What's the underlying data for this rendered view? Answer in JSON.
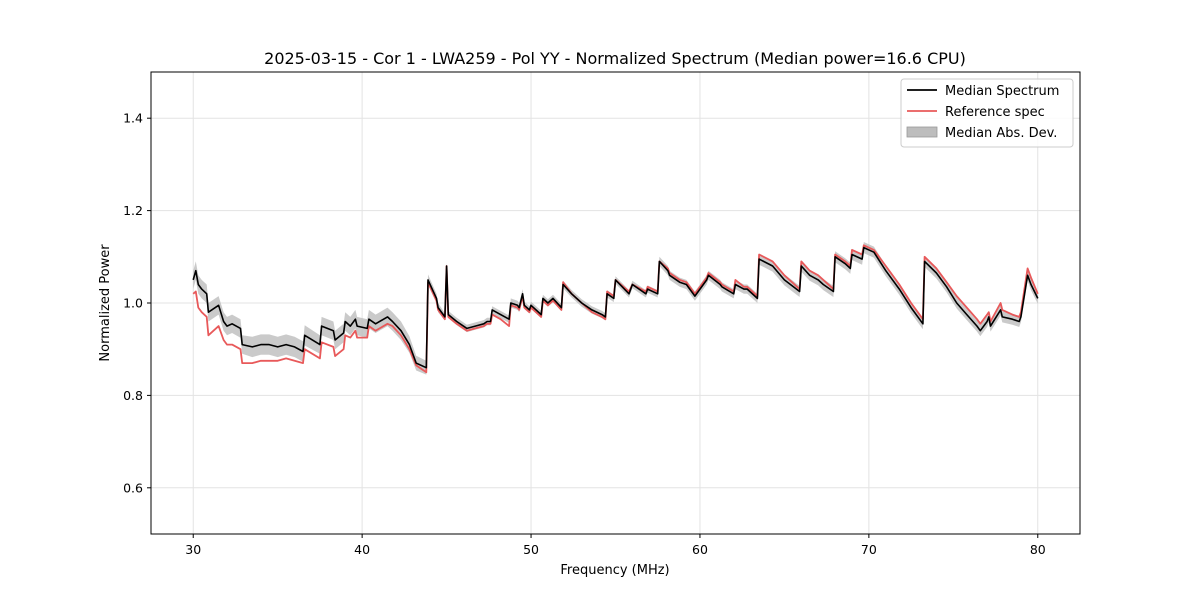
{
  "chart_data": {
    "type": "line",
    "title": "2025-03-15 - Cor 1 - LWA259 - Pol YY - Normalized Spectrum (Median power=16.6 CPU)",
    "xlabel": "Frequency (MHz)",
    "ylabel": "Normalized Power",
    "xlim": [
      27.5,
      82.5
    ],
    "ylim": [
      0.5,
      1.5
    ],
    "xticks": [
      30,
      40,
      50,
      60,
      70,
      80
    ],
    "xtick_labels": [
      "30",
      "40",
      "50",
      "60",
      "70",
      "80"
    ],
    "yticks": [
      0.6,
      0.8,
      1.0,
      1.2,
      1.4
    ],
    "ytick_labels": [
      "0.6",
      "0.8",
      "1.0",
      "1.2",
      "1.4"
    ],
    "grid": true,
    "legend": {
      "placement": "top-right",
      "entries": [
        "Median Spectrum",
        "Reference spec",
        "Median Abs. Dev."
      ]
    },
    "colors": {
      "median": "#000000",
      "reference": "#e8595a",
      "mad": "#bdbdbd"
    },
    "series": [
      {
        "name": "Median Spectrum",
        "x": [
          30.0,
          30.15,
          30.3,
          30.5,
          30.8,
          30.9,
          31.5,
          31.8,
          32.0,
          32.3,
          32.8,
          32.9,
          33.5,
          34.0,
          34.5,
          35.0,
          35.5,
          36.0,
          36.5,
          36.6,
          37.5,
          37.6,
          38.3,
          38.4,
          38.9,
          39.0,
          39.3,
          39.6,
          39.7,
          40.3,
          40.4,
          40.8,
          41.5,
          41.8,
          42.3,
          42.8,
          43.2,
          43.8,
          43.9,
          44.4,
          44.5,
          44.9,
          45.0,
          45.1,
          45.6,
          46.2,
          46.7,
          47.2,
          47.4,
          47.6,
          47.7,
          48.2,
          48.7,
          48.8,
          49.2,
          49.3,
          49.5,
          49.6,
          49.9,
          50.0,
          50.6,
          50.7,
          51.0,
          51.3,
          51.8,
          51.9,
          52.4,
          53.0,
          53.6,
          54.2,
          54.4,
          54.5,
          54.9,
          55.0,
          55.8,
          56.0,
          56.8,
          56.9,
          57.5,
          57.6,
          58.1,
          58.2,
          58.8,
          59.2,
          59.7,
          60.4,
          60.5,
          61.2,
          61.3,
          62.0,
          62.1,
          62.6,
          62.8,
          63.4,
          63.5,
          64.3,
          65.0,
          65.9,
          66.0,
          66.5,
          67.0,
          67.3,
          67.9,
          68.0,
          68.6,
          68.9,
          69.0,
          69.6,
          69.7,
          70.3,
          71.0,
          71.8,
          72.5,
          73.2,
          73.3,
          74.0,
          74.6,
          75.2,
          75.8,
          76.4,
          76.6,
          77.0,
          77.1,
          77.2,
          77.8,
          77.9,
          78.5,
          78.9,
          79.0,
          79.4,
          79.6,
          80.0
        ],
        "values": [
          1.05,
          1.07,
          1.04,
          1.03,
          1.02,
          0.98,
          0.995,
          0.96,
          0.95,
          0.955,
          0.945,
          0.91,
          0.905,
          0.91,
          0.91,
          0.905,
          0.91,
          0.905,
          0.895,
          0.93,
          0.91,
          0.95,
          0.94,
          0.92,
          0.935,
          0.96,
          0.95,
          0.965,
          0.95,
          0.945,
          0.965,
          0.955,
          0.97,
          0.96,
          0.94,
          0.91,
          0.87,
          0.86,
          1.05,
          1.01,
          0.99,
          0.97,
          1.08,
          0.975,
          0.96,
          0.945,
          0.95,
          0.955,
          0.96,
          0.96,
          0.985,
          0.975,
          0.965,
          1.0,
          0.995,
          0.99,
          1.02,
          0.995,
          0.985,
          0.995,
          0.975,
          1.01,
          1.0,
          1.01,
          0.99,
          1.04,
          1.02,
          1.0,
          0.985,
          0.975,
          0.97,
          1.02,
          1.01,
          1.05,
          1.02,
          1.04,
          1.02,
          1.03,
          1.02,
          1.09,
          1.07,
          1.06,
          1.045,
          1.04,
          1.015,
          1.05,
          1.06,
          1.04,
          1.035,
          1.02,
          1.04,
          1.03,
          1.03,
          1.01,
          1.095,
          1.08,
          1.05,
          1.025,
          1.08,
          1.06,
          1.05,
          1.04,
          1.025,
          1.1,
          1.085,
          1.075,
          1.105,
          1.095,
          1.12,
          1.11,
          1.07,
          1.03,
          0.99,
          0.955,
          1.09,
          1.065,
          1.035,
          1.0,
          0.975,
          0.95,
          0.94,
          0.96,
          0.97,
          0.95,
          0.985,
          0.97,
          0.965,
          0.96,
          0.97,
          1.06,
          1.04,
          1.01
        ]
      },
      {
        "name": "Reference spec",
        "x": [
          30.0,
          30.15,
          30.3,
          30.5,
          30.8,
          30.9,
          31.5,
          31.8,
          32.0,
          32.3,
          32.8,
          32.9,
          33.5,
          34.0,
          34.5,
          35.0,
          35.5,
          36.0,
          36.5,
          36.6,
          37.5,
          37.6,
          38.3,
          38.4,
          38.9,
          39.0,
          39.3,
          39.6,
          39.7,
          40.3,
          40.4,
          40.8,
          41.5,
          41.8,
          42.3,
          42.8,
          43.2,
          43.8,
          43.9,
          44.4,
          44.5,
          44.9,
          45.0,
          45.1,
          45.6,
          46.2,
          46.7,
          47.2,
          47.4,
          47.6,
          47.7,
          48.2,
          48.7,
          48.8,
          49.2,
          49.3,
          49.5,
          49.6,
          49.9,
          50.0,
          50.6,
          50.7,
          51.0,
          51.3,
          51.8,
          51.9,
          52.4,
          53.0,
          53.6,
          54.2,
          54.4,
          54.5,
          54.9,
          55.0,
          55.8,
          56.0,
          56.8,
          56.9,
          57.5,
          57.6,
          58.1,
          58.2,
          58.8,
          59.2,
          59.7,
          60.4,
          60.5,
          61.2,
          61.3,
          62.0,
          62.1,
          62.6,
          62.8,
          63.4,
          63.5,
          64.3,
          65.0,
          65.9,
          66.0,
          66.5,
          67.0,
          67.3,
          67.9,
          68.0,
          68.6,
          68.9,
          69.0,
          69.6,
          69.7,
          70.3,
          71.0,
          71.8,
          72.5,
          73.2,
          73.3,
          74.0,
          74.6,
          75.2,
          75.8,
          76.4,
          76.6,
          77.0,
          77.1,
          77.2,
          77.8,
          77.9,
          78.5,
          78.9,
          79.0,
          79.4,
          79.6,
          80.0
        ],
        "values": [
          1.02,
          1.025,
          0.99,
          0.98,
          0.97,
          0.93,
          0.95,
          0.92,
          0.91,
          0.91,
          0.9,
          0.87,
          0.87,
          0.875,
          0.875,
          0.875,
          0.88,
          0.875,
          0.87,
          0.9,
          0.88,
          0.915,
          0.905,
          0.885,
          0.9,
          0.93,
          0.925,
          0.94,
          0.925,
          0.925,
          0.95,
          0.94,
          0.955,
          0.95,
          0.93,
          0.9,
          0.865,
          0.85,
          1.045,
          1.005,
          0.985,
          0.965,
          1.08,
          0.97,
          0.955,
          0.94,
          0.945,
          0.95,
          0.955,
          0.955,
          0.975,
          0.965,
          0.95,
          0.995,
          0.99,
          0.985,
          1.015,
          0.99,
          0.98,
          0.99,
          0.97,
          1.005,
          0.995,
          1.005,
          0.985,
          1.045,
          1.02,
          1.0,
          0.98,
          0.97,
          0.965,
          1.025,
          1.015,
          1.05,
          1.025,
          1.04,
          1.025,
          1.035,
          1.025,
          1.09,
          1.075,
          1.065,
          1.05,
          1.045,
          1.02,
          1.055,
          1.065,
          1.045,
          1.04,
          1.025,
          1.05,
          1.035,
          1.035,
          1.015,
          1.105,
          1.09,
          1.06,
          1.03,
          1.09,
          1.07,
          1.06,
          1.05,
          1.03,
          1.105,
          1.09,
          1.08,
          1.115,
          1.105,
          1.125,
          1.115,
          1.08,
          1.04,
          1.0,
          0.965,
          1.1,
          1.075,
          1.045,
          1.015,
          0.99,
          0.965,
          0.955,
          0.975,
          0.98,
          0.96,
          1.0,
          0.985,
          0.975,
          0.97,
          0.98,
          1.075,
          1.055,
          1.02
        ]
      },
      {
        "name": "Median Abs. Dev.",
        "type": "band",
        "mad_width": [
          0.02,
          0.02,
          0.02,
          0.02,
          0.02,
          0.02,
          0.02,
          0.02,
          0.02,
          0.02,
          0.02,
          0.02,
          0.022,
          0.022,
          0.022,
          0.022,
          0.022,
          0.022,
          0.022,
          0.022,
          0.02,
          0.02,
          0.02,
          0.02,
          0.02,
          0.02,
          0.02,
          0.02,
          0.02,
          0.02,
          0.02,
          0.02,
          0.02,
          0.02,
          0.02,
          0.018,
          0.016,
          0.015,
          0.012,
          0.01,
          0.01,
          0.008,
          0.008,
          0.008,
          0.008,
          0.008,
          0.008,
          0.008,
          0.008,
          0.008,
          0.008,
          0.008,
          0.008,
          0.01,
          0.01,
          0.01,
          0.01,
          0.008,
          0.008,
          0.008,
          0.008,
          0.008,
          0.008,
          0.008,
          0.008,
          0.008,
          0.008,
          0.008,
          0.008,
          0.008,
          0.008,
          0.008,
          0.008,
          0.008,
          0.008,
          0.008,
          0.008,
          0.008,
          0.008,
          0.01,
          0.01,
          0.01,
          0.01,
          0.01,
          0.01,
          0.01,
          0.01,
          0.01,
          0.01,
          0.01,
          0.01,
          0.01,
          0.01,
          0.01,
          0.012,
          0.012,
          0.012,
          0.012,
          0.012,
          0.012,
          0.012,
          0.012,
          0.012,
          0.012,
          0.012,
          0.012,
          0.012,
          0.012,
          0.012,
          0.012,
          0.012,
          0.012,
          0.012,
          0.012,
          0.012,
          0.012,
          0.012,
          0.012,
          0.012,
          0.012,
          0.012,
          0.012,
          0.012,
          0.012,
          0.012,
          0.012,
          0.012,
          0.012,
          0.012,
          0.012,
          0.012,
          0.012
        ]
      }
    ]
  }
}
